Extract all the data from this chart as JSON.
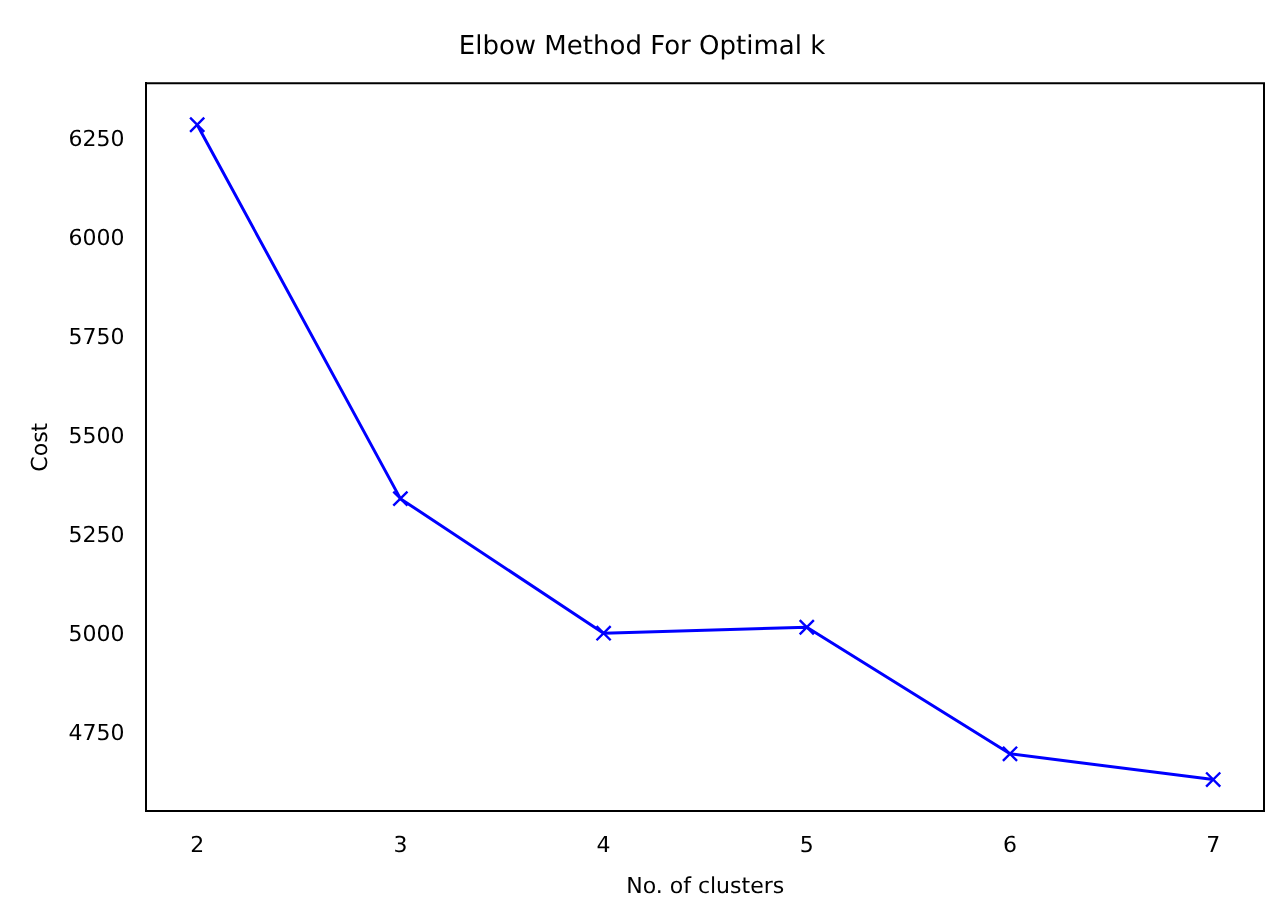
{
  "chart_data": {
    "type": "line",
    "title": "Elbow Method For Optimal k",
    "xlabel": "No. of clusters",
    "ylabel": "Cost",
    "x": [
      2,
      3,
      4,
      5,
      6,
      7
    ],
    "series": [
      {
        "color": "#0000ff",
        "values": [
          6290,
          5345,
          5005,
          5020,
          4700,
          4635
        ]
      }
    ],
    "xlim": [
      1.75,
      7.25
    ],
    "xticks": [
      2,
      3,
      4,
      5,
      6,
      7
    ],
    "ylim": [
      4555,
      6395
    ],
    "yticks": [
      4750,
      5000,
      5250,
      5500,
      5750,
      6000,
      6250
    ],
    "marker": "cross",
    "line_style": "solid",
    "grid": false,
    "legend": false
  }
}
